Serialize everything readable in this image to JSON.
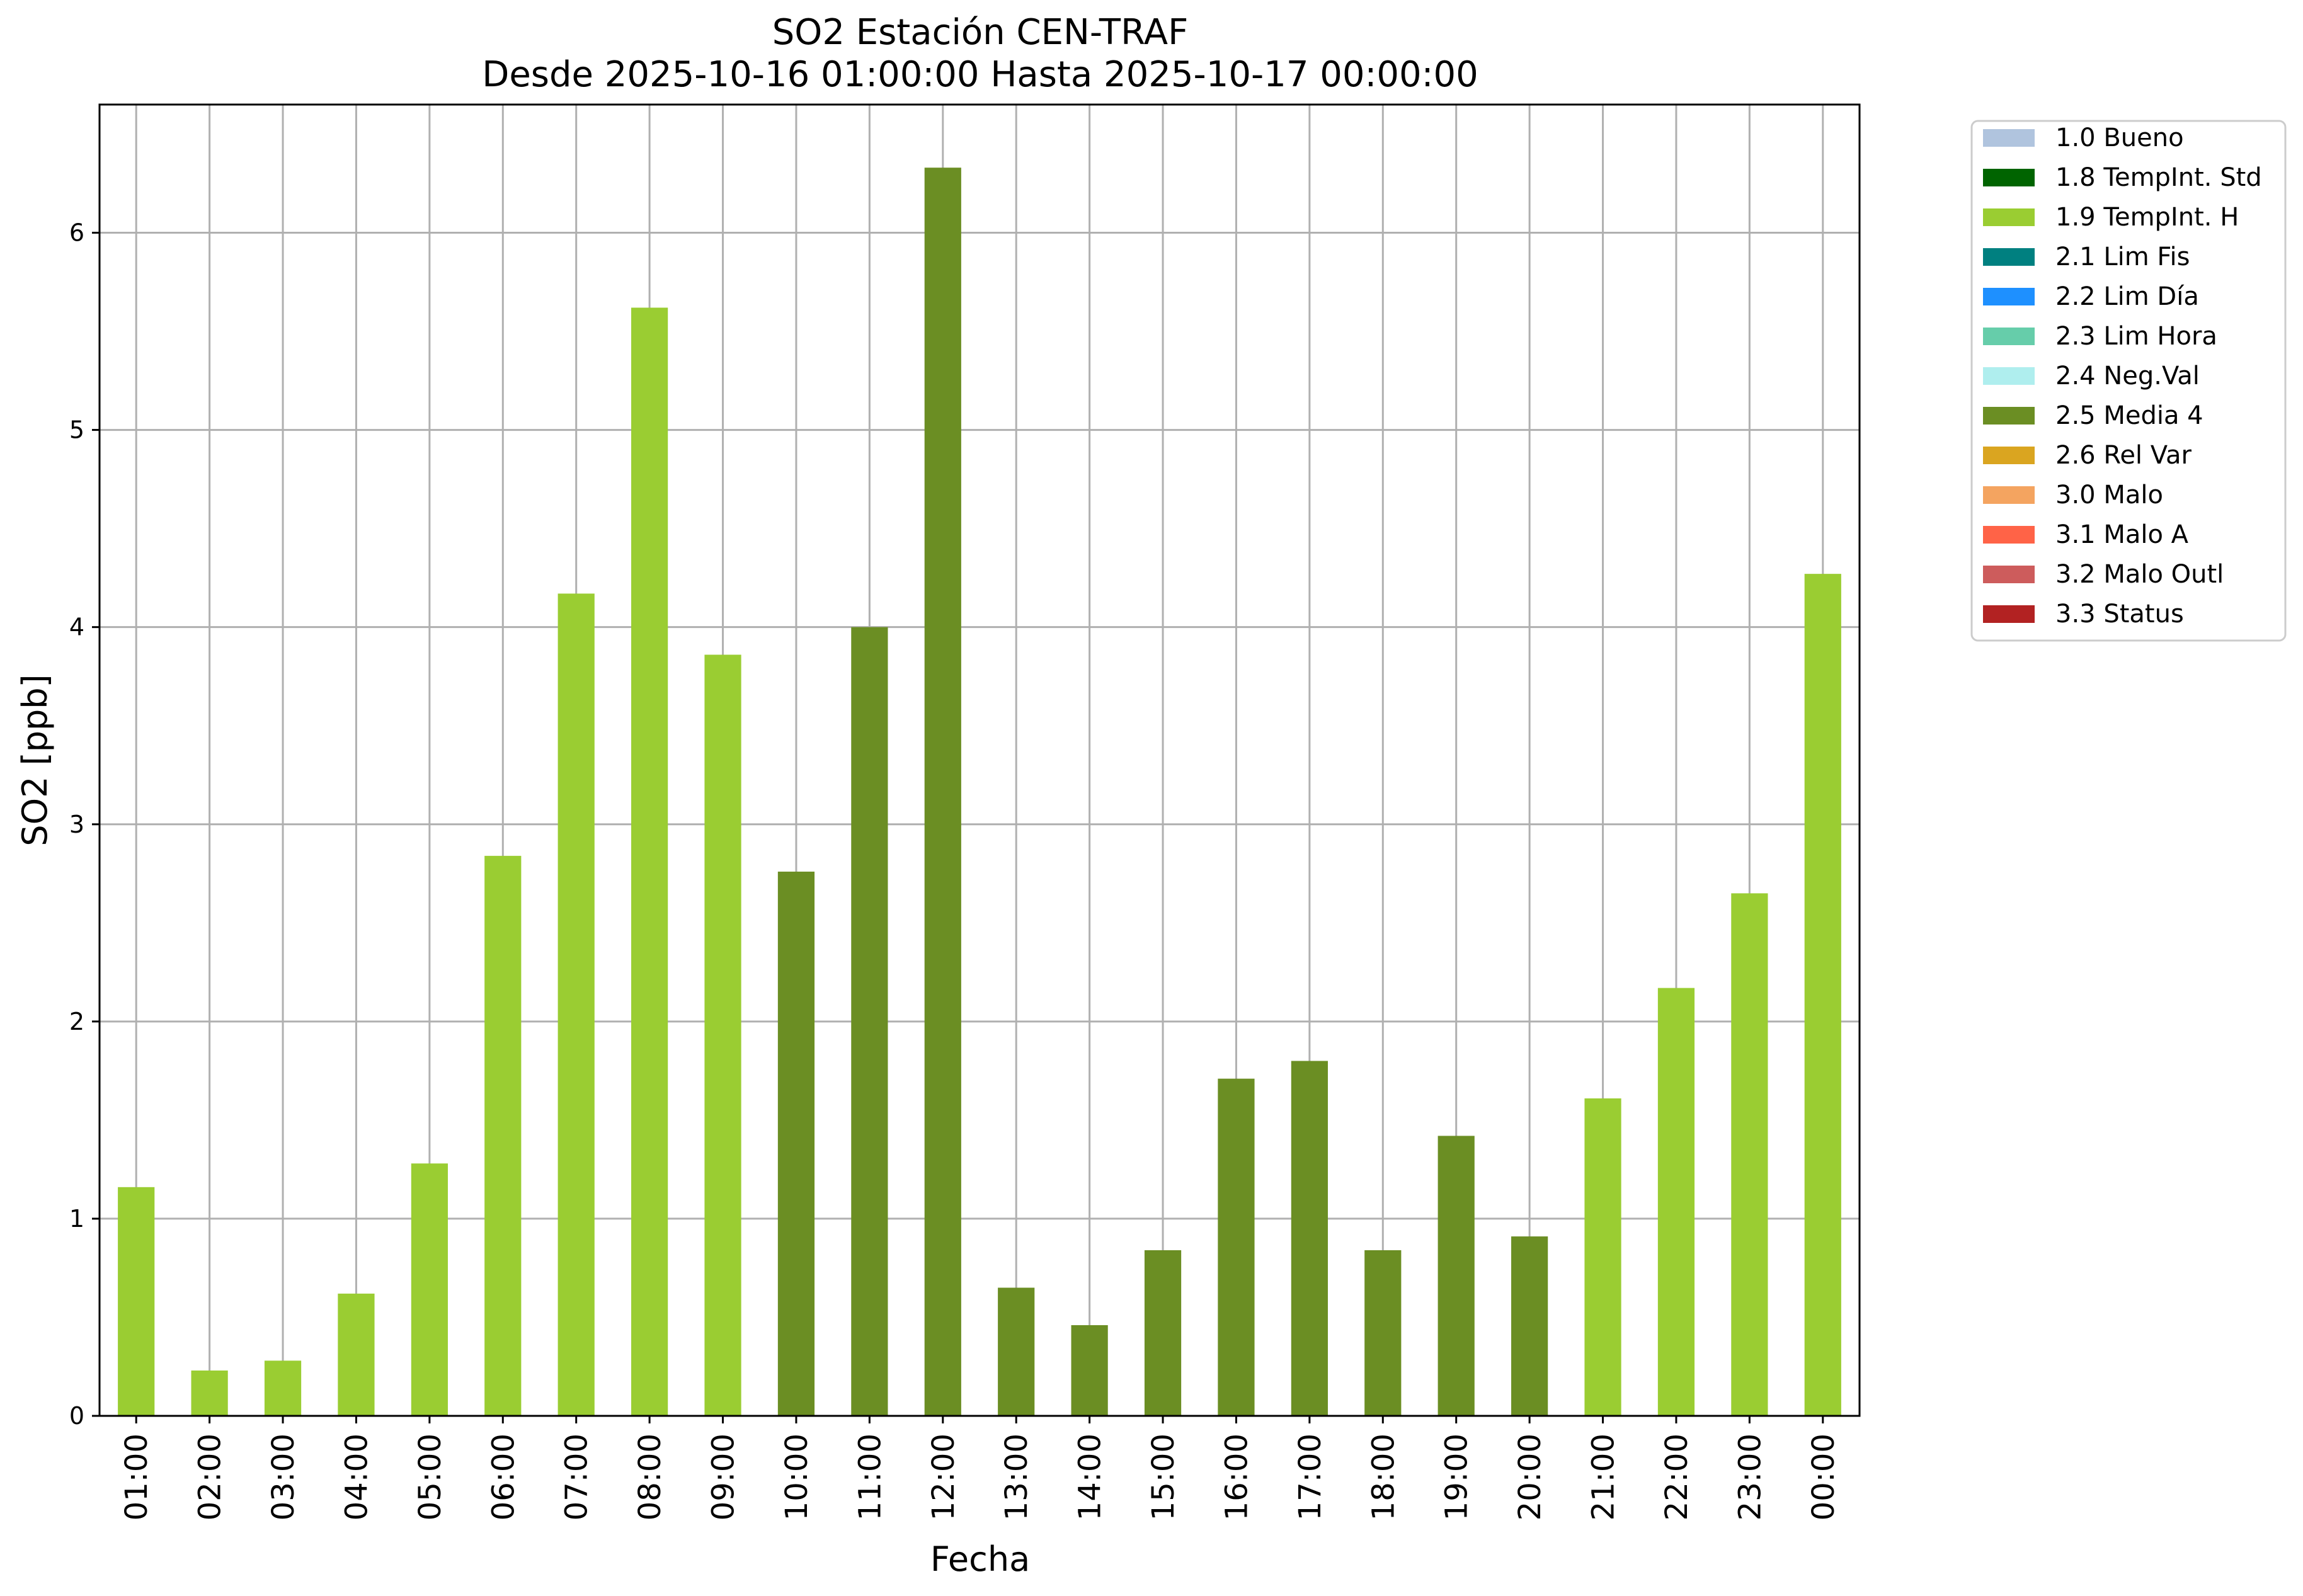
{
  "chart_data": {
    "type": "bar",
    "title": "SO2 Estación CEN-TRAF",
    "subtitle": "Desde 2025-10-16 01:00:00 Hasta 2025-10-17 00:00:00",
    "xlabel": "Fecha",
    "ylabel": "SO2 [ppb]",
    "ylim": [
      0,
      6.65
    ],
    "yticks": [
      "0",
      "1",
      "2",
      "3",
      "4",
      "5",
      "6"
    ],
    "grid": true,
    "legend_position": "outside-top-right",
    "categories": [
      "01:00",
      "02:00",
      "03:00",
      "04:00",
      "05:00",
      "06:00",
      "07:00",
      "08:00",
      "09:00",
      "10:00",
      "11:00",
      "12:00",
      "13:00",
      "14:00",
      "15:00",
      "16:00",
      "17:00",
      "18:00",
      "19:00",
      "20:00",
      "21:00",
      "22:00",
      "23:00",
      "00:00"
    ],
    "values": [
      1.16,
      0.23,
      0.28,
      0.62,
      1.28,
      2.84,
      4.17,
      5.62,
      3.86,
      2.76,
      4.0,
      6.33,
      0.65,
      0.46,
      0.84,
      1.71,
      1.8,
      0.84,
      1.42,
      0.91,
      1.61,
      2.17,
      2.65,
      4.27
    ],
    "flags": [
      "1.9 TempInt. H",
      "1.9 TempInt. H",
      "1.9 TempInt. H",
      "1.9 TempInt. H",
      "1.9 TempInt. H",
      "1.9 TempInt. H",
      "1.9 TempInt. H",
      "1.9 TempInt. H",
      "1.9 TempInt. H",
      "2.5 Media 4",
      "2.5 Media 4",
      "2.5 Media 4",
      "2.5 Media 4",
      "2.5 Media 4",
      "2.5 Media 4",
      "2.5 Media 4",
      "2.5 Media 4",
      "2.5 Media 4",
      "2.5 Media 4",
      "2.5 Media 4",
      "1.9 TempInt. H",
      "1.9 TempInt. H",
      "1.9 TempInt. H",
      "1.9 TempInt. H"
    ],
    "legend": [
      {
        "label": "1.0 Bueno",
        "color": "#b0c4de"
      },
      {
        "label": "1.8 TempInt. Std",
        "color": "#006400"
      },
      {
        "label": "1.9 TempInt. H",
        "color": "#9acd32"
      },
      {
        "label": "2.1 Lim Fis",
        "color": "#008080"
      },
      {
        "label": "2.2 Lim Día",
        "color": "#1e90ff"
      },
      {
        "label": "2.3 Lim Hora",
        "color": "#66cdaa"
      },
      {
        "label": "2.4 Neg.Val",
        "color": "#afeeee"
      },
      {
        "label": "2.5 Media 4",
        "color": "#6b8e23"
      },
      {
        "label": "2.6 Rel Var",
        "color": "#daa520"
      },
      {
        "label": "3.0 Malo",
        "color": "#f4a460"
      },
      {
        "label": "3.1 Malo A",
        "color": "#ff6347"
      },
      {
        "label": "3.2 Malo Outl",
        "color": "#cd5c5c"
      },
      {
        "label": "3.3 Status",
        "color": "#b22222"
      }
    ]
  }
}
